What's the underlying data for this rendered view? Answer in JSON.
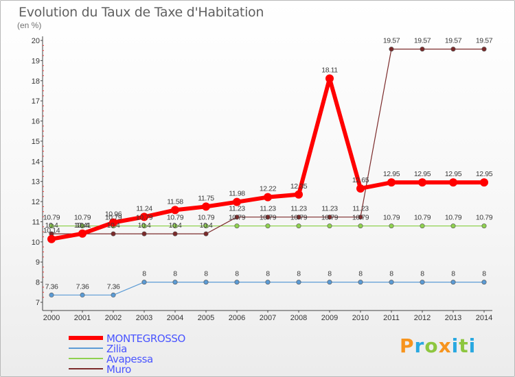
{
  "chart_data": {
    "type": "line",
    "title": "Evolution du Taux de Taxe d'Habitation",
    "unit_label": "(en %)",
    "ylim": [
      7,
      20
    ],
    "y_ticks": [
      7,
      8,
      9,
      10,
      11,
      12,
      13,
      14,
      15,
      16,
      17,
      18,
      19,
      20
    ],
    "x": [
      "2000",
      "2001",
      "2002",
      "2003",
      "2004",
      "2005",
      "2006",
      "2007",
      "2008",
      "2009",
      "2010",
      "2011",
      "2012",
      "2013",
      "2014"
    ],
    "series": [
      {
        "name": "MONTEGROSSO",
        "color": "#ff0000",
        "values": [
          10.14,
          10.41,
          10.96,
          11.24,
          11.58,
          11.75,
          11.98,
          12.22,
          12.35,
          18.11,
          12.65,
          12.95,
          12.95,
          12.95,
          12.95
        ],
        "labels": [
          "10.14",
          "10.41",
          "10.96",
          "11.24",
          "11.58",
          "11.75",
          "11.98",
          "12.22",
          "12.35",
          "18.11",
          "12.65",
          "12.95",
          "12.95",
          "12.95",
          "12.95"
        ]
      },
      {
        "name": "Zilia",
        "color": "#5b9bd5",
        "values": [
          7.36,
          7.36,
          7.36,
          8,
          8,
          8,
          8,
          8,
          8,
          8,
          8,
          8,
          8,
          8,
          8
        ],
        "labels": [
          "7.36",
          "7.36",
          "7.36",
          "8",
          "8",
          "8",
          "8",
          "8",
          "8",
          "8",
          "8",
          "8",
          "8",
          "8",
          "8"
        ]
      },
      {
        "name": "Avapessa",
        "color": "#8fd14f",
        "values": [
          10.79,
          10.79,
          10.79,
          10.79,
          10.79,
          10.79,
          10.79,
          10.79,
          10.79,
          10.79,
          10.79,
          10.79,
          10.79,
          10.79,
          10.79
        ],
        "labels": [
          "10.79",
          "10.79",
          "10.79",
          "10.79",
          "10.79",
          "10.79",
          "10.79",
          "10.79",
          "10.79",
          "10.79",
          "10.79",
          "10.79",
          "10.79",
          "10.79",
          "10.79"
        ]
      },
      {
        "name": "Muro",
        "color": "#7b2a2a",
        "values": [
          10.4,
          10.4,
          10.4,
          10.4,
          10.4,
          10.4,
          11.23,
          11.23,
          11.23,
          11.23,
          11.23,
          19.57,
          19.57,
          19.57,
          19.57
        ],
        "labels": [
          "10.4",
          "10.4",
          "10.4",
          "10.4",
          "10.4",
          "10.4",
          "11.23",
          "11.23",
          "11.23",
          "11.23",
          "11.23",
          "19.57",
          "19.57",
          "19.57",
          "19.57"
        ]
      }
    ],
    "legend_position": "bottom-left",
    "grid": false
  },
  "brand": {
    "text": "Proxiti",
    "letters": [
      {
        "ch": "P",
        "color": "#f7941d"
      },
      {
        "ch": "r",
        "color": "#29a8e0"
      },
      {
        "ch": "o",
        "color": "#8dc63f"
      },
      {
        "ch": "x",
        "color": "#f7941d"
      },
      {
        "ch": "i",
        "color": "#29a8e0"
      },
      {
        "ch": "t",
        "color": "#8dc63f"
      },
      {
        "ch": "i",
        "color": "#29a8e0"
      }
    ]
  }
}
